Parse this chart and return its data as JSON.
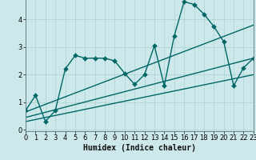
{
  "xlabel": "Humidex (Indice chaleur)",
  "bg_color": "#cde8ea",
  "line_color": "#006666",
  "grid_color": "#aad0d4",
  "xlim": [
    0,
    23
  ],
  "ylim": [
    -0.05,
    5.0
  ],
  "xticks": [
    0,
    1,
    2,
    3,
    4,
    5,
    6,
    7,
    8,
    9,
    10,
    11,
    12,
    13,
    14,
    15,
    16,
    17,
    18,
    19,
    20,
    21,
    22,
    23
  ],
  "yticks": [
    0,
    1,
    2,
    3,
    4
  ],
  "series1_x": [
    0,
    1,
    2,
    3,
    4,
    5,
    6,
    7,
    8,
    9,
    10,
    11,
    12,
    13,
    14,
    15,
    16,
    17,
    18,
    19,
    20,
    21,
    22,
    23
  ],
  "series1_y": [
    0.7,
    1.25,
    0.3,
    0.7,
    2.2,
    2.7,
    2.6,
    2.6,
    2.6,
    2.5,
    2.05,
    1.65,
    2.0,
    3.05,
    1.6,
    3.4,
    4.65,
    4.55,
    4.2,
    3.75,
    3.2,
    1.6,
    2.25,
    2.6
  ],
  "series2_x": [
    0,
    23
  ],
  "series2_y": [
    0.65,
    3.8
  ],
  "series3_x": [
    0,
    23
  ],
  "series3_y": [
    0.45,
    2.6
  ],
  "series4_x": [
    0,
    23
  ],
  "series4_y": [
    0.3,
    2.0
  ],
  "markersize": 3,
  "linewidth": 1.0
}
